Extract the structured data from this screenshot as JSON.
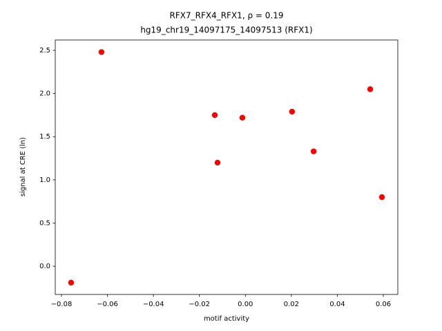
{
  "chart_data": {
    "type": "scatter",
    "title": [
      "RFX7_RFX4_RFX1, ρ = 0.19",
      "hg19_chr19_14097175_14097513 (RFX1)"
    ],
    "xlabel": "motif activity",
    "ylabel": "signal at CRE (ln)",
    "x": [
      -0.0626,
      -0.0758,
      -0.0133,
      -0.0121,
      -0.0013,
      0.0203,
      0.0297,
      0.0543,
      0.0594
    ],
    "values": [
      2.48,
      -0.19,
      1.75,
      1.2,
      1.72,
      1.79,
      1.33,
      2.05,
      0.8
    ],
    "color": "#ff0000",
    "xlim": [
      -0.0827,
      0.0663
    ],
    "ylim": [
      -0.327,
      2.62
    ],
    "xticks": [
      {
        "value": -0.08,
        "label": "−0.08"
      },
      {
        "value": -0.06,
        "label": "−0.06"
      },
      {
        "value": -0.04,
        "label": "−0.04"
      },
      {
        "value": -0.02,
        "label": "−0.02"
      },
      {
        "value": 0,
        "label": "0.00"
      },
      0.02,
      0.04,
      0.06
    ],
    "yticks": [
      {
        "value": 0,
        "label": "0.0"
      },
      0.5,
      {
        "value": 1,
        "label": "1.0"
      },
      1.5,
      {
        "value": 2,
        "label": "2.0"
      },
      2.5
    ]
  }
}
